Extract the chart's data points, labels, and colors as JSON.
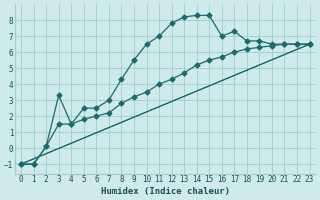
{
  "xlabel": "Humidex (Indice chaleur)",
  "bg_color": "#ceeaea",
  "grid_color": "#a0cccc",
  "line_color": "#1a6b6b",
  "xlim": [
    -0.5,
    23.5
  ],
  "ylim": [
    -1.6,
    9.0
  ],
  "xticks": [
    0,
    1,
    2,
    3,
    4,
    5,
    6,
    7,
    8,
    9,
    10,
    11,
    12,
    13,
    14,
    15,
    16,
    17,
    18,
    19,
    20,
    21,
    22,
    23
  ],
  "yticks": [
    -1,
    0,
    1,
    2,
    3,
    4,
    5,
    6,
    7,
    8
  ],
  "line1_x": [
    0,
    1,
    2,
    3,
    4,
    5,
    6,
    7,
    8,
    9,
    10,
    11,
    12,
    13,
    14,
    15,
    16,
    17,
    18,
    19,
    20,
    21,
    22,
    23
  ],
  "line1_y": [
    -1.0,
    -1.0,
    0.1,
    3.3,
    1.5,
    2.5,
    2.5,
    3.0,
    4.3,
    5.5,
    6.5,
    7.0,
    7.8,
    8.2,
    8.3,
    8.3,
    7.0,
    7.3,
    6.7,
    6.7,
    6.5,
    6.5,
    6.5,
    6.5
  ],
  "line2_x": [
    0,
    1,
    2,
    3,
    4,
    5,
    6,
    7,
    8,
    9,
    10,
    11,
    12,
    13,
    14,
    15,
    16,
    17,
    18,
    19,
    20,
    21,
    22,
    23
  ],
  "line2_y": [
    -1.0,
    -1.0,
    0.1,
    1.5,
    1.5,
    1.8,
    2.0,
    2.2,
    2.8,
    3.2,
    3.5,
    4.0,
    4.3,
    4.7,
    5.2,
    5.5,
    5.7,
    6.0,
    6.2,
    6.3,
    6.4,
    6.5,
    6.5,
    6.5
  ],
  "line3_x": [
    0,
    23
  ],
  "line3_y": [
    -1.0,
    6.5
  ],
  "line4_x": [
    0,
    23
  ],
  "line4_y": [
    -1.0,
    6.5
  ]
}
